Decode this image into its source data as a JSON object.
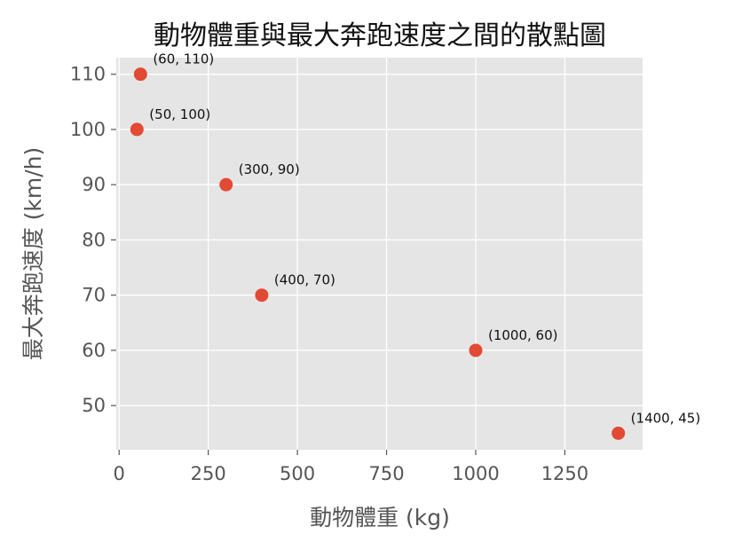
{
  "chart_data": {
    "type": "scatter",
    "title": "動物體重與最大奔跑速度之間的散點圖",
    "xlabel": "動物體重 (kg)",
    "ylabel": "最大奔跑速度 (km/h)",
    "xlim": [
      -8,
      1468
    ],
    "ylim": [
      42,
      113
    ],
    "xticks": [
      0,
      250,
      500,
      750,
      1000,
      1250
    ],
    "yticks": [
      50,
      60,
      70,
      80,
      90,
      100,
      110
    ],
    "xtick_labels": [
      "0",
      "250",
      "500",
      "750",
      "1000",
      "1250"
    ],
    "ytick_labels": [
      "50",
      "60",
      "70",
      "80",
      "90",
      "100",
      "110"
    ],
    "grid": true,
    "point_color": "#e24a33",
    "background_color": "#e5e5e5",
    "points": [
      {
        "x": 60,
        "y": 110,
        "label": "(60, 110)"
      },
      {
        "x": 50,
        "y": 100,
        "label": "(50, 100)"
      },
      {
        "x": 300,
        "y": 90,
        "label": "(300, 90)"
      },
      {
        "x": 400,
        "y": 70,
        "label": "(400, 70)"
      },
      {
        "x": 1000,
        "y": 60,
        "label": "(1000, 60)"
      },
      {
        "x": 1400,
        "y": 45,
        "label": "(1400, 45)"
      }
    ]
  }
}
